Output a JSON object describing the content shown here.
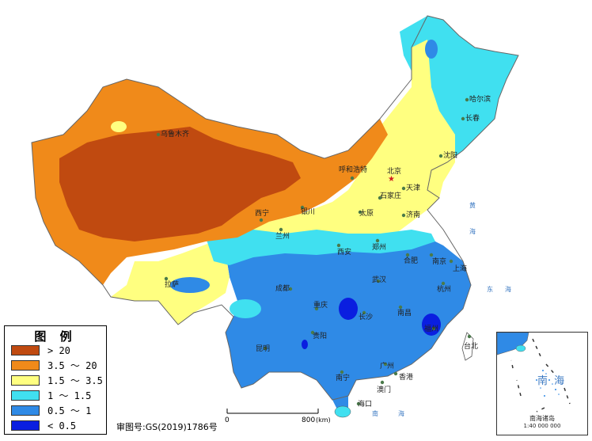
{
  "legend": {
    "title": "图 例",
    "items": [
      {
        "label": "> 20",
        "color": "#c04a10"
      },
      {
        "label": "3.5 ～ 20",
        "color": "#f08a1a"
      },
      {
        "label": "1.5 ～ 3.5",
        "color": "#ffff80"
      },
      {
        "label": "1 ～ 1.5",
        "color": "#40e0f0"
      },
      {
        "label": "0.5 ～ 1",
        "color": "#2f8ae6"
      },
      {
        "label": "< 0.5",
        "color": "#0a1ee0"
      }
    ]
  },
  "review_number": "审图号:GS(2019)1786号",
  "scale_bar": {
    "start": "0",
    "end": "800",
    "unit": "(km)"
  },
  "inset": {
    "sea_name": "南 海",
    "islands_name": "南海诸岛",
    "scale": "1:40 000 000"
  },
  "cities": [
    {
      "name": "乌鲁木齐"
    },
    {
      "name": "哈尔滨"
    },
    {
      "name": "长春"
    },
    {
      "name": "沈阳"
    },
    {
      "name": "呼和浩特"
    },
    {
      "name": "北京"
    },
    {
      "name": "天津"
    },
    {
      "name": "石家庄"
    },
    {
      "name": "太原"
    },
    {
      "name": "济南"
    },
    {
      "name": "银川"
    },
    {
      "name": "西宁"
    },
    {
      "name": "兰州"
    },
    {
      "name": "西安"
    },
    {
      "name": "郑州"
    },
    {
      "name": "合肥"
    },
    {
      "name": "南京"
    },
    {
      "name": "上海"
    },
    {
      "name": "拉萨"
    },
    {
      "name": "成都"
    },
    {
      "name": "武汉"
    },
    {
      "name": "杭州"
    },
    {
      "name": "重庆"
    },
    {
      "name": "南昌"
    },
    {
      "name": "贵阳"
    },
    {
      "name": "长沙"
    },
    {
      "name": "福州"
    },
    {
      "name": "台北"
    },
    {
      "name": "昆明"
    },
    {
      "name": "南宁"
    },
    {
      "name": "广州"
    },
    {
      "name": "香港"
    },
    {
      "name": "澳门"
    },
    {
      "name": "海口"
    }
  ],
  "seas": [
    "黄",
    "海",
    "东",
    "海",
    "南",
    "海"
  ]
}
